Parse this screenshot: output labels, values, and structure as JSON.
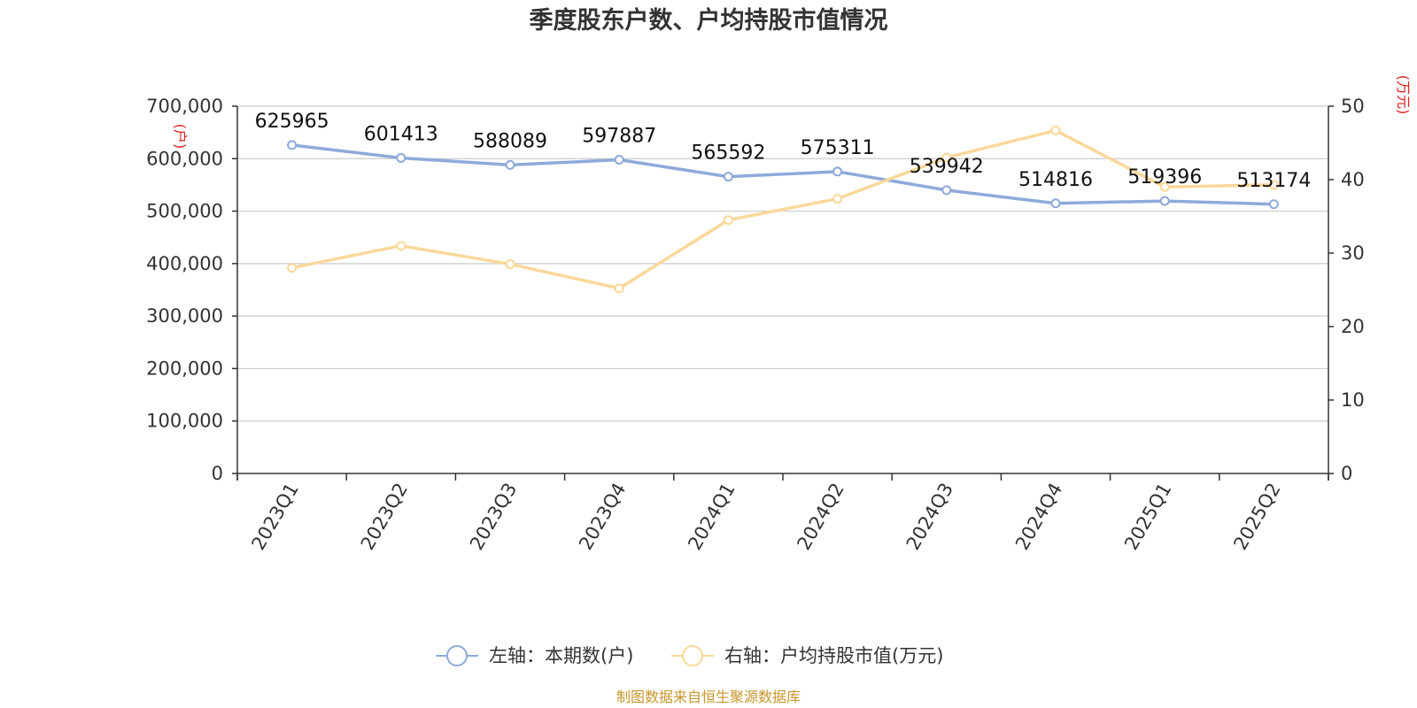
{
  "chart_data": {
    "type": "line",
    "title": "季度股东户数、户均持股市值情况",
    "categories": [
      "2023Q1",
      "2023Q2",
      "2023Q3",
      "2023Q4",
      "2024Q1",
      "2024Q2",
      "2024Q3",
      "2024Q4",
      "2025Q1",
      "2025Q2"
    ],
    "left_axis": {
      "unit": "(户)",
      "ylim": [
        0,
        700000
      ],
      "ticks": [
        "0",
        "100,000",
        "200,000",
        "300,000",
        "400,000",
        "500,000",
        "600,000",
        "700,000"
      ],
      "tick_values": [
        0,
        100000,
        200000,
        300000,
        400000,
        500000,
        600000,
        700000
      ]
    },
    "right_axis": {
      "unit": "(万元)",
      "ylim": [
        0,
        50
      ],
      "ticks": [
        "0",
        "10",
        "20",
        "30",
        "40",
        "50"
      ],
      "tick_values": [
        0,
        10,
        20,
        30,
        40,
        50
      ]
    },
    "series": [
      {
        "name": "左轴：本期数(户)",
        "axis": "left",
        "color": "#8eaad9",
        "values": [
          625965,
          601413,
          588089,
          597887,
          565592,
          575311,
          539942,
          514816,
          519396,
          513174
        ],
        "labels": [
          "625965",
          "601413",
          "588089",
          "597887",
          "565592",
          "575311",
          "539942",
          "514816",
          "519396",
          "513174"
        ]
      },
      {
        "name": "右轴：户均持股市值(万元)",
        "axis": "right",
        "color": "#fad89a",
        "values": [
          28.0,
          31.0,
          28.5,
          25.2,
          34.5,
          37.4,
          43.0,
          46.7,
          39.0,
          39.3
        ]
      }
    ],
    "grid": true,
    "legend": "bottom-center"
  },
  "footer": {
    "source": "制图数据来自恒生聚源数据库"
  }
}
